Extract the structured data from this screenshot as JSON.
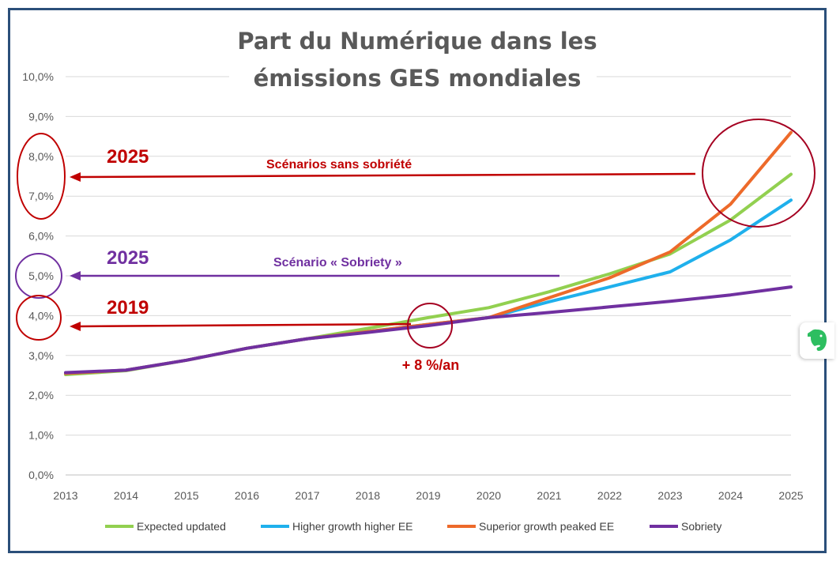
{
  "chart_data": {
    "type": "line",
    "title": [
      "Part du Numérique dans les",
      "émissions GES mondiales"
    ],
    "x": [
      "2013",
      "2014",
      "2015",
      "2016",
      "2017",
      "2018",
      "2019",
      "2020",
      "2021",
      "2022",
      "2023",
      "2024",
      "2025"
    ],
    "y_ticks": [
      "0,0%",
      "1,0%",
      "2,0%",
      "3,0%",
      "4,0%",
      "5,0%",
      "6,0%",
      "7,0%",
      "8,0%",
      "9,0%",
      "10,0%"
    ],
    "ylim": [
      0,
      10
    ],
    "grid": true,
    "legend_position": "bottom",
    "series": [
      {
        "name": "Expected updated",
        "color": "#92d050",
        "values": [
          2.52,
          2.62,
          2.88,
          3.18,
          3.42,
          3.68,
          3.95,
          4.2,
          4.6,
          5.05,
          5.55,
          6.4,
          7.55
        ]
      },
      {
        "name": "Higher growth higher EE",
        "color": "#1fb0ec",
        "values": [
          2.55,
          2.63,
          2.88,
          3.18,
          3.42,
          3.6,
          3.78,
          3.95,
          4.35,
          4.72,
          5.1,
          5.9,
          6.9
        ]
      },
      {
        "name": "Superior growth peaked EE",
        "color": "#ed6a2a",
        "values": [
          2.55,
          2.63,
          2.88,
          3.18,
          3.42,
          3.6,
          3.78,
          3.95,
          4.45,
          4.95,
          5.6,
          6.8,
          8.6
        ]
      },
      {
        "name": "Sobriety",
        "color": "#7030a0",
        "values": [
          2.57,
          2.63,
          2.88,
          3.18,
          3.42,
          3.58,
          3.75,
          3.95,
          4.08,
          4.22,
          4.36,
          4.52,
          4.72
        ]
      }
    ],
    "annotations": [
      {
        "year_label": "2025",
        "text": "Scénarios sans sobriété",
        "color": "#c00000",
        "level": 7.55,
        "ellipse_year_x": 2024.8,
        "ellipse_val": 7.3
      },
      {
        "year_label": "2025",
        "text": "Scénario « Sobriety »",
        "color": "#7030a0",
        "level": 5.0
      },
      {
        "year_label": "2019",
        "text": "+ 8 %/an",
        "color": "#c00000",
        "level": 3.75,
        "circle_year": 2019
      }
    ]
  }
}
